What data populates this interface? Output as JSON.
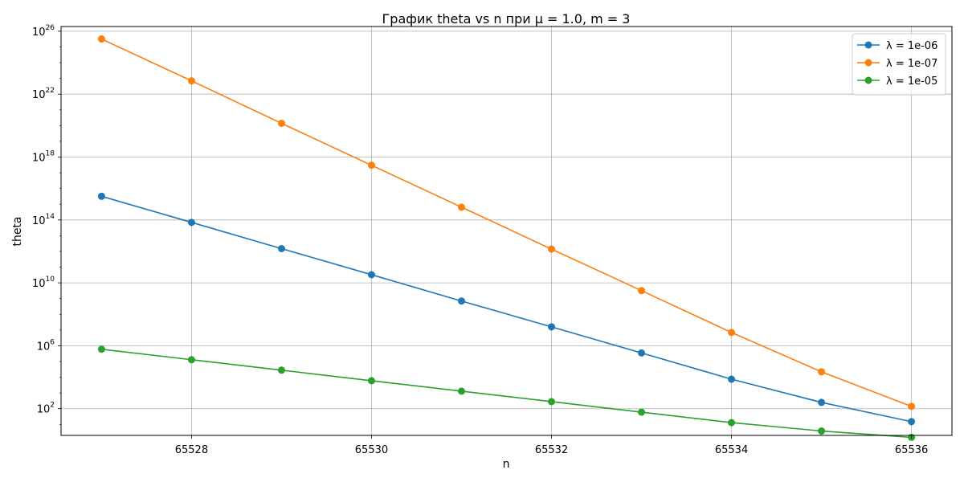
{
  "chart_data": {
    "type": "line",
    "title": "График theta vs n при μ = 1.0, m = 3",
    "xlabel": "n",
    "ylabel": "theta",
    "yscale": "log",
    "grid": true,
    "legend_position": "top-right",
    "x": [
      65527,
      65528,
      65529,
      65530,
      65531,
      65532,
      65533,
      65534,
      65535,
      65536
    ],
    "xlim": [
      65526.55,
      65536.45
    ],
    "ylim_log10": [
      0.3,
      26.3
    ],
    "xticks": [
      65528,
      65530,
      65532,
      65534,
      65536
    ],
    "xtick_labels": [
      "65528",
      "65530",
      "65532",
      "65534",
      "65536"
    ],
    "yticks_exp": [
      2,
      6,
      10,
      14,
      18,
      22,
      26
    ],
    "ytick_base": "10",
    "series": [
      {
        "name": "λ = 1e-06",
        "color": "#1f77b4",
        "values": [
          3200000000000000.0,
          70000000000000.0,
          1500000000000.0,
          33000000000.0,
          700000000.0,
          16000000.0,
          350000.0,
          7500.0,
          250.0,
          15
        ]
      },
      {
        "name": "λ = 1e-07",
        "color": "#ff7f0e",
        "values": [
          3.2e+25,
          7e+22,
          1.4e+20,
          3e+17,
          650000000000000.0,
          1400000000000.0,
          3200000000.0,
          7000000.0,
          22000.0,
          140
        ]
      },
      {
        "name": "λ = 1e-05",
        "color": "#2ca02c",
        "values": [
          600000.0,
          130000.0,
          28000.0,
          6000.0,
          1300.0,
          280.0,
          60,
          13,
          3.8,
          1.5
        ]
      }
    ]
  }
}
